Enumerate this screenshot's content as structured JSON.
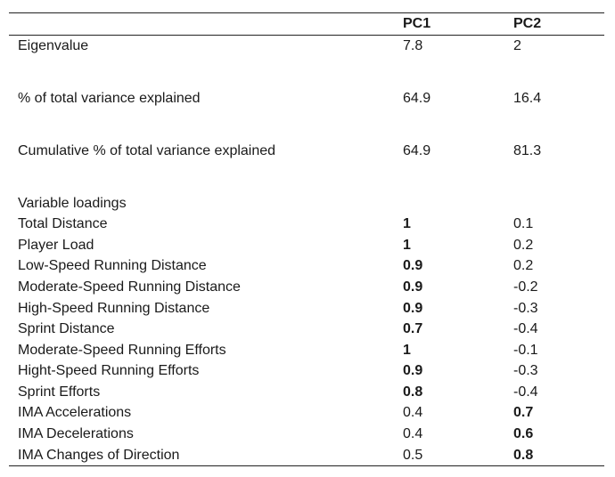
{
  "header": {
    "pc1": "PC1",
    "pc2": "PC2"
  },
  "summary": [
    {
      "label": "Eigenvalue",
      "pc1": "7.8",
      "pc2": "2"
    },
    {
      "label": "% of total variance explained",
      "pc1": "64.9",
      "pc2": "16.4"
    },
    {
      "label": "Cumulative % of total variance explained",
      "pc1": "64.9",
      "pc2": "81.3"
    }
  ],
  "loadings_title": "Variable loadings",
  "loadings": [
    {
      "label": "Total Distance",
      "pc1": "1",
      "pc2": "0.1",
      "bold": "pc1"
    },
    {
      "label": "Player Load",
      "pc1": "1",
      "pc2": "0.2",
      "bold": "pc1"
    },
    {
      "label": "Low-Speed Running Distance",
      "pc1": "0.9",
      "pc2": "0.2",
      "bold": "pc1"
    },
    {
      "label": "Moderate-Speed Running Distance",
      "pc1": "0.9",
      "pc2": "-0.2",
      "bold": "pc1"
    },
    {
      "label": "High-Speed Running Distance",
      "pc1": "0.9",
      "pc2": "-0.3",
      "bold": "pc1"
    },
    {
      "label": "Sprint Distance",
      "pc1": "0.7",
      "pc2": "-0.4",
      "bold": "pc1"
    },
    {
      "label": "Moderate-Speed Running Efforts",
      "pc1": "1",
      "pc2": "-0.1",
      "bold": "pc1"
    },
    {
      "label": "Hight-Speed Running Efforts",
      "pc1": "0.9",
      "pc2": "-0.3",
      "bold": "pc1"
    },
    {
      "label": "Sprint Efforts",
      "pc1": "0.8",
      "pc2": "-0.4",
      "bold": "pc1"
    },
    {
      "label": "IMA Accelerations",
      "pc1": "0.4",
      "pc2": "0.7",
      "bold": "pc2"
    },
    {
      "label": "IMA Decelerations",
      "pc1": "0.4",
      "pc2": "0.6",
      "bold": "pc2"
    },
    {
      "label": "IMA Changes of Direction",
      "pc1": "0.5",
      "pc2": "0.8",
      "bold": "pc2"
    }
  ]
}
